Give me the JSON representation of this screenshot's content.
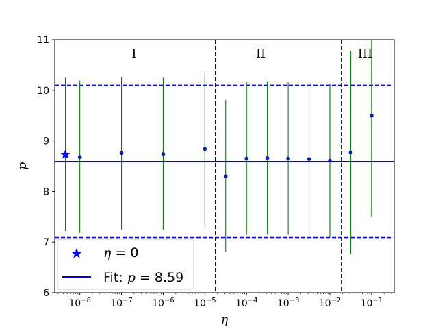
{
  "chart_data": {
    "type": "scatter",
    "xlabel": "η",
    "ylabel": "p",
    "xscale": "log",
    "xlim": [
      2.5e-09,
      0.35
    ],
    "ylim": [
      6,
      11
    ],
    "yticks": [
      6,
      7,
      8,
      9,
      10,
      11
    ],
    "xticks": [
      {
        "value": 1e-08,
        "base": "10",
        "exp": "−8"
      },
      {
        "value": 1e-07,
        "base": "10",
        "exp": "−7"
      },
      {
        "value": 1e-06,
        "base": "10",
        "exp": "−6"
      },
      {
        "value": 1e-05,
        "base": "10",
        "exp": "−5"
      },
      {
        "value": 0.0001,
        "base": "10",
        "exp": "−4"
      },
      {
        "value": 0.001,
        "base": "10",
        "exp": "−3"
      },
      {
        "value": 0.01,
        "base": "10",
        "exp": "−2"
      },
      {
        "value": 0.1,
        "base": "10",
        "exp": "−1"
      }
    ],
    "points": [
      {
        "x": 1e-08,
        "y": 8.68,
        "ylow": 7.18,
        "yhigh": 10.19
      },
      {
        "x": 1e-07,
        "y": 8.76,
        "ylow": 7.25,
        "yhigh": 10.27
      },
      {
        "x": 1e-06,
        "y": 8.74,
        "ylow": 7.24,
        "yhigh": 10.25
      },
      {
        "x": 1e-05,
        "y": 8.84,
        "ylow": 7.33,
        "yhigh": 10.35
      },
      {
        "x": 3.16e-05,
        "y": 8.3,
        "ylow": 6.8,
        "yhigh": 9.81
      },
      {
        "x": 0.0001,
        "y": 8.65,
        "ylow": 7.14,
        "yhigh": 10.16
      },
      {
        "x": 0.000316,
        "y": 8.66,
        "ylow": 7.15,
        "yhigh": 10.17
      },
      {
        "x": 0.001,
        "y": 8.65,
        "ylow": 7.14,
        "yhigh": 10.16
      },
      {
        "x": 0.00316,
        "y": 8.64,
        "ylow": 7.13,
        "yhigh": 10.15
      },
      {
        "x": 0.01,
        "y": 8.61,
        "ylow": 7.1,
        "yhigh": 10.12
      },
      {
        "x": 0.0316,
        "y": 8.77,
        "ylow": 6.76,
        "yhigh": 10.78
      },
      {
        "x": 0.1,
        "y": 9.5,
        "ylow": 7.5,
        "yhigh": 11.5
      }
    ],
    "eta_zero_point": {
      "x": 4.5e-09,
      "y": 8.73,
      "ylow": 7.22,
      "yhigh": 10.25
    },
    "fit_value": 8.59,
    "band": [
      7.09,
      10.1
    ],
    "region_boundaries": [
      1.8e-05,
      0.019
    ],
    "regions": [
      {
        "label": "I",
        "x": 2e-07
      },
      {
        "label": "II",
        "x": 0.00022
      },
      {
        "label": "III",
        "x": 0.07
      }
    ],
    "legend": {
      "placement": "lower-left",
      "star_label_var": "η",
      "star_label_rest": " = 0",
      "fit_label_prefix": "Fit: ",
      "fit_label_var": "p",
      "fit_label_rest": " = 8.59"
    },
    "colors": {
      "points": "#0a1fa8",
      "errorbars": "#008000",
      "fit": "#0000cd",
      "band": "#0000ff",
      "boundary": "#000000",
      "star": "#0000ff"
    }
  }
}
